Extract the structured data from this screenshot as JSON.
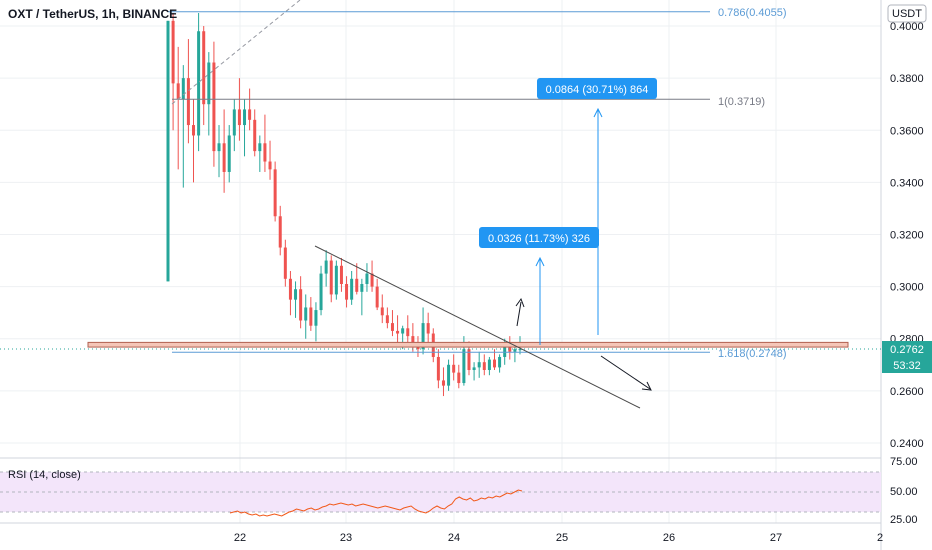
{
  "header": {
    "title": "OXT / TetherUS, 1h, BINANCE",
    "currency": "USDT"
  },
  "price_badge": {
    "price": "0.2762",
    "countdown": "53:32"
  },
  "rsi_panel": {
    "label": "RSI (14, close)",
    "ticks": [
      "75.00",
      "50.00",
      "25.00"
    ]
  },
  "annotations": {
    "fib_0786": "0.786(0.4055)",
    "fib_1": "1(0.3719)",
    "fib_1618": "1.618(0.2748)",
    "target_big": "0.0864 (30.71%) 864",
    "target_small": "0.0326 (11.73%) 326"
  },
  "colors": {
    "up": "#26a69a",
    "down": "#ef5350",
    "fib_blue": "#5b9bd5",
    "fib_gray": "#787b86",
    "support_zone": "#f5c6b8",
    "badge_blue": "#2196f3",
    "rsi_line": "#f2591a",
    "rsi_band": "#f3e5fa"
  },
  "chart_data": {
    "type": "candlestick",
    "title": "OXT / TetherUS, 1h, BINANCE",
    "y_range": [
      0.235,
      0.405
    ],
    "y_ticks": [
      "0.4000",
      "0.3800",
      "0.3600",
      "0.3400",
      "0.3200",
      "0.3000",
      "0.2800",
      "0.2600",
      "0.2400"
    ],
    "x_ticks": [
      "22",
      "23",
      "24",
      "25",
      "26",
      "27",
      "2"
    ],
    "candles_ohlc": [
      [
        0.302,
        0.402,
        0.302,
        0.402
      ],
      [
        0.402,
        0.415,
        0.36,
        0.378
      ],
      [
        0.378,
        0.392,
        0.345,
        0.372
      ],
      [
        0.372,
        0.385,
        0.338,
        0.38
      ],
      [
        0.38,
        0.395,
        0.355,
        0.362
      ],
      [
        0.362,
        0.372,
        0.34,
        0.358
      ],
      [
        0.358,
        0.41,
        0.352,
        0.398
      ],
      [
        0.398,
        0.4,
        0.362,
        0.37
      ],
      [
        0.37,
        0.39,
        0.358,
        0.386
      ],
      [
        0.386,
        0.394,
        0.346,
        0.352
      ],
      [
        0.352,
        0.362,
        0.342,
        0.355
      ],
      [
        0.355,
        0.368,
        0.336,
        0.344
      ],
      [
        0.344,
        0.362,
        0.34,
        0.358
      ],
      [
        0.358,
        0.372,
        0.352,
        0.368
      ],
      [
        0.368,
        0.38,
        0.356,
        0.362
      ],
      [
        0.362,
        0.372,
        0.35,
        0.368
      ],
      [
        0.368,
        0.376,
        0.36,
        0.364
      ],
      [
        0.364,
        0.368,
        0.35,
        0.352
      ],
      [
        0.352,
        0.358,
        0.344,
        0.355
      ],
      [
        0.355,
        0.366,
        0.344,
        0.348
      ],
      [
        0.348,
        0.356,
        0.341,
        0.345
      ],
      [
        0.345,
        0.348,
        0.325,
        0.327
      ],
      [
        0.327,
        0.331,
        0.312,
        0.315
      ],
      [
        0.315,
        0.318,
        0.3,
        0.303
      ],
      [
        0.303,
        0.306,
        0.289,
        0.295
      ],
      [
        0.295,
        0.302,
        0.288,
        0.299
      ],
      [
        0.299,
        0.304,
        0.284,
        0.287
      ],
      [
        0.287,
        0.297,
        0.28,
        0.292
      ],
      [
        0.292,
        0.296,
        0.283,
        0.285
      ],
      [
        0.285,
        0.294,
        0.279,
        0.291
      ],
      [
        0.291,
        0.308,
        0.289,
        0.305
      ],
      [
        0.305,
        0.314,
        0.3,
        0.31
      ],
      [
        0.31,
        0.312,
        0.294,
        0.297
      ],
      [
        0.297,
        0.31,
        0.295,
        0.308
      ],
      [
        0.308,
        0.311,
        0.298,
        0.301
      ],
      [
        0.301,
        0.304,
        0.292,
        0.295
      ],
      [
        0.295,
        0.306,
        0.293,
        0.303
      ],
      [
        0.303,
        0.309,
        0.297,
        0.298
      ],
      [
        0.298,
        0.303,
        0.289,
        0.301
      ],
      [
        0.301,
        0.309,
        0.298,
        0.305
      ],
      [
        0.305,
        0.31,
        0.298,
        0.3
      ],
      [
        0.3,
        0.303,
        0.291,
        0.292
      ],
      [
        0.292,
        0.297,
        0.286,
        0.289
      ],
      [
        0.289,
        0.292,
        0.284,
        0.286
      ],
      [
        0.286,
        0.291,
        0.281,
        0.283
      ],
      [
        0.283,
        0.289,
        0.278,
        0.282
      ],
      [
        0.282,
        0.285,
        0.276,
        0.284
      ],
      [
        0.284,
        0.289,
        0.278,
        0.281
      ],
      [
        0.281,
        0.286,
        0.275,
        0.278
      ],
      [
        0.278,
        0.281,
        0.273,
        0.276
      ],
      [
        0.276,
        0.292,
        0.274,
        0.286
      ],
      [
        0.286,
        0.29,
        0.278,
        0.282
      ],
      [
        0.282,
        0.284,
        0.271,
        0.273
      ],
      [
        0.273,
        0.276,
        0.261,
        0.264
      ],
      [
        0.264,
        0.269,
        0.258,
        0.262
      ],
      [
        0.262,
        0.272,
        0.26,
        0.27
      ],
      [
        0.27,
        0.274,
        0.264,
        0.267
      ],
      [
        0.267,
        0.27,
        0.261,
        0.263
      ],
      [
        0.263,
        0.281,
        0.262,
        0.276
      ],
      [
        0.276,
        0.279,
        0.266,
        0.268
      ],
      [
        0.268,
        0.271,
        0.264,
        0.269
      ],
      [
        0.269,
        0.275,
        0.265,
        0.271
      ],
      [
        0.271,
        0.274,
        0.266,
        0.268
      ],
      [
        0.268,
        0.273,
        0.266,
        0.272
      ],
      [
        0.272,
        0.276,
        0.268,
        0.269
      ],
      [
        0.269,
        0.274,
        0.267,
        0.273
      ],
      [
        0.273,
        0.28,
        0.27,
        0.278
      ],
      [
        0.278,
        0.281,
        0.272,
        0.275
      ],
      [
        0.275,
        0.278,
        0.271,
        0.276
      ],
      [
        0.276,
        0.281,
        0.274,
        0.276
      ]
    ],
    "fib_levels": [
      {
        "ratio": "0.786",
        "price": 0.4055
      },
      {
        "ratio": "1",
        "price": 0.3719
      },
      {
        "ratio": "1.618",
        "price": 0.2748
      }
    ],
    "support_zone": [
      0.2768,
      0.2786
    ],
    "trendline": [
      [
        0.315,
        0.257
      ]
    ],
    "rsi": {
      "y_range": [
        20,
        82
      ],
      "values": [
        29,
        30,
        31,
        29,
        30,
        28,
        27,
        28,
        26,
        27,
        26,
        27,
        28,
        27,
        26,
        28,
        30,
        31,
        33,
        32,
        31,
        33,
        34,
        32,
        33,
        35,
        36,
        38,
        37,
        38,
        39,
        38,
        37,
        38,
        36,
        37,
        38,
        37,
        36,
        35,
        34,
        35,
        36,
        35,
        34,
        33,
        32,
        34,
        35,
        36,
        33,
        31,
        30,
        29,
        31,
        34,
        36,
        34,
        33,
        36,
        38,
        43,
        45,
        43,
        42,
        44,
        41,
        42,
        44,
        43,
        45,
        44,
        46,
        45,
        47,
        49,
        48,
        50,
        52,
        51
      ]
    }
  }
}
